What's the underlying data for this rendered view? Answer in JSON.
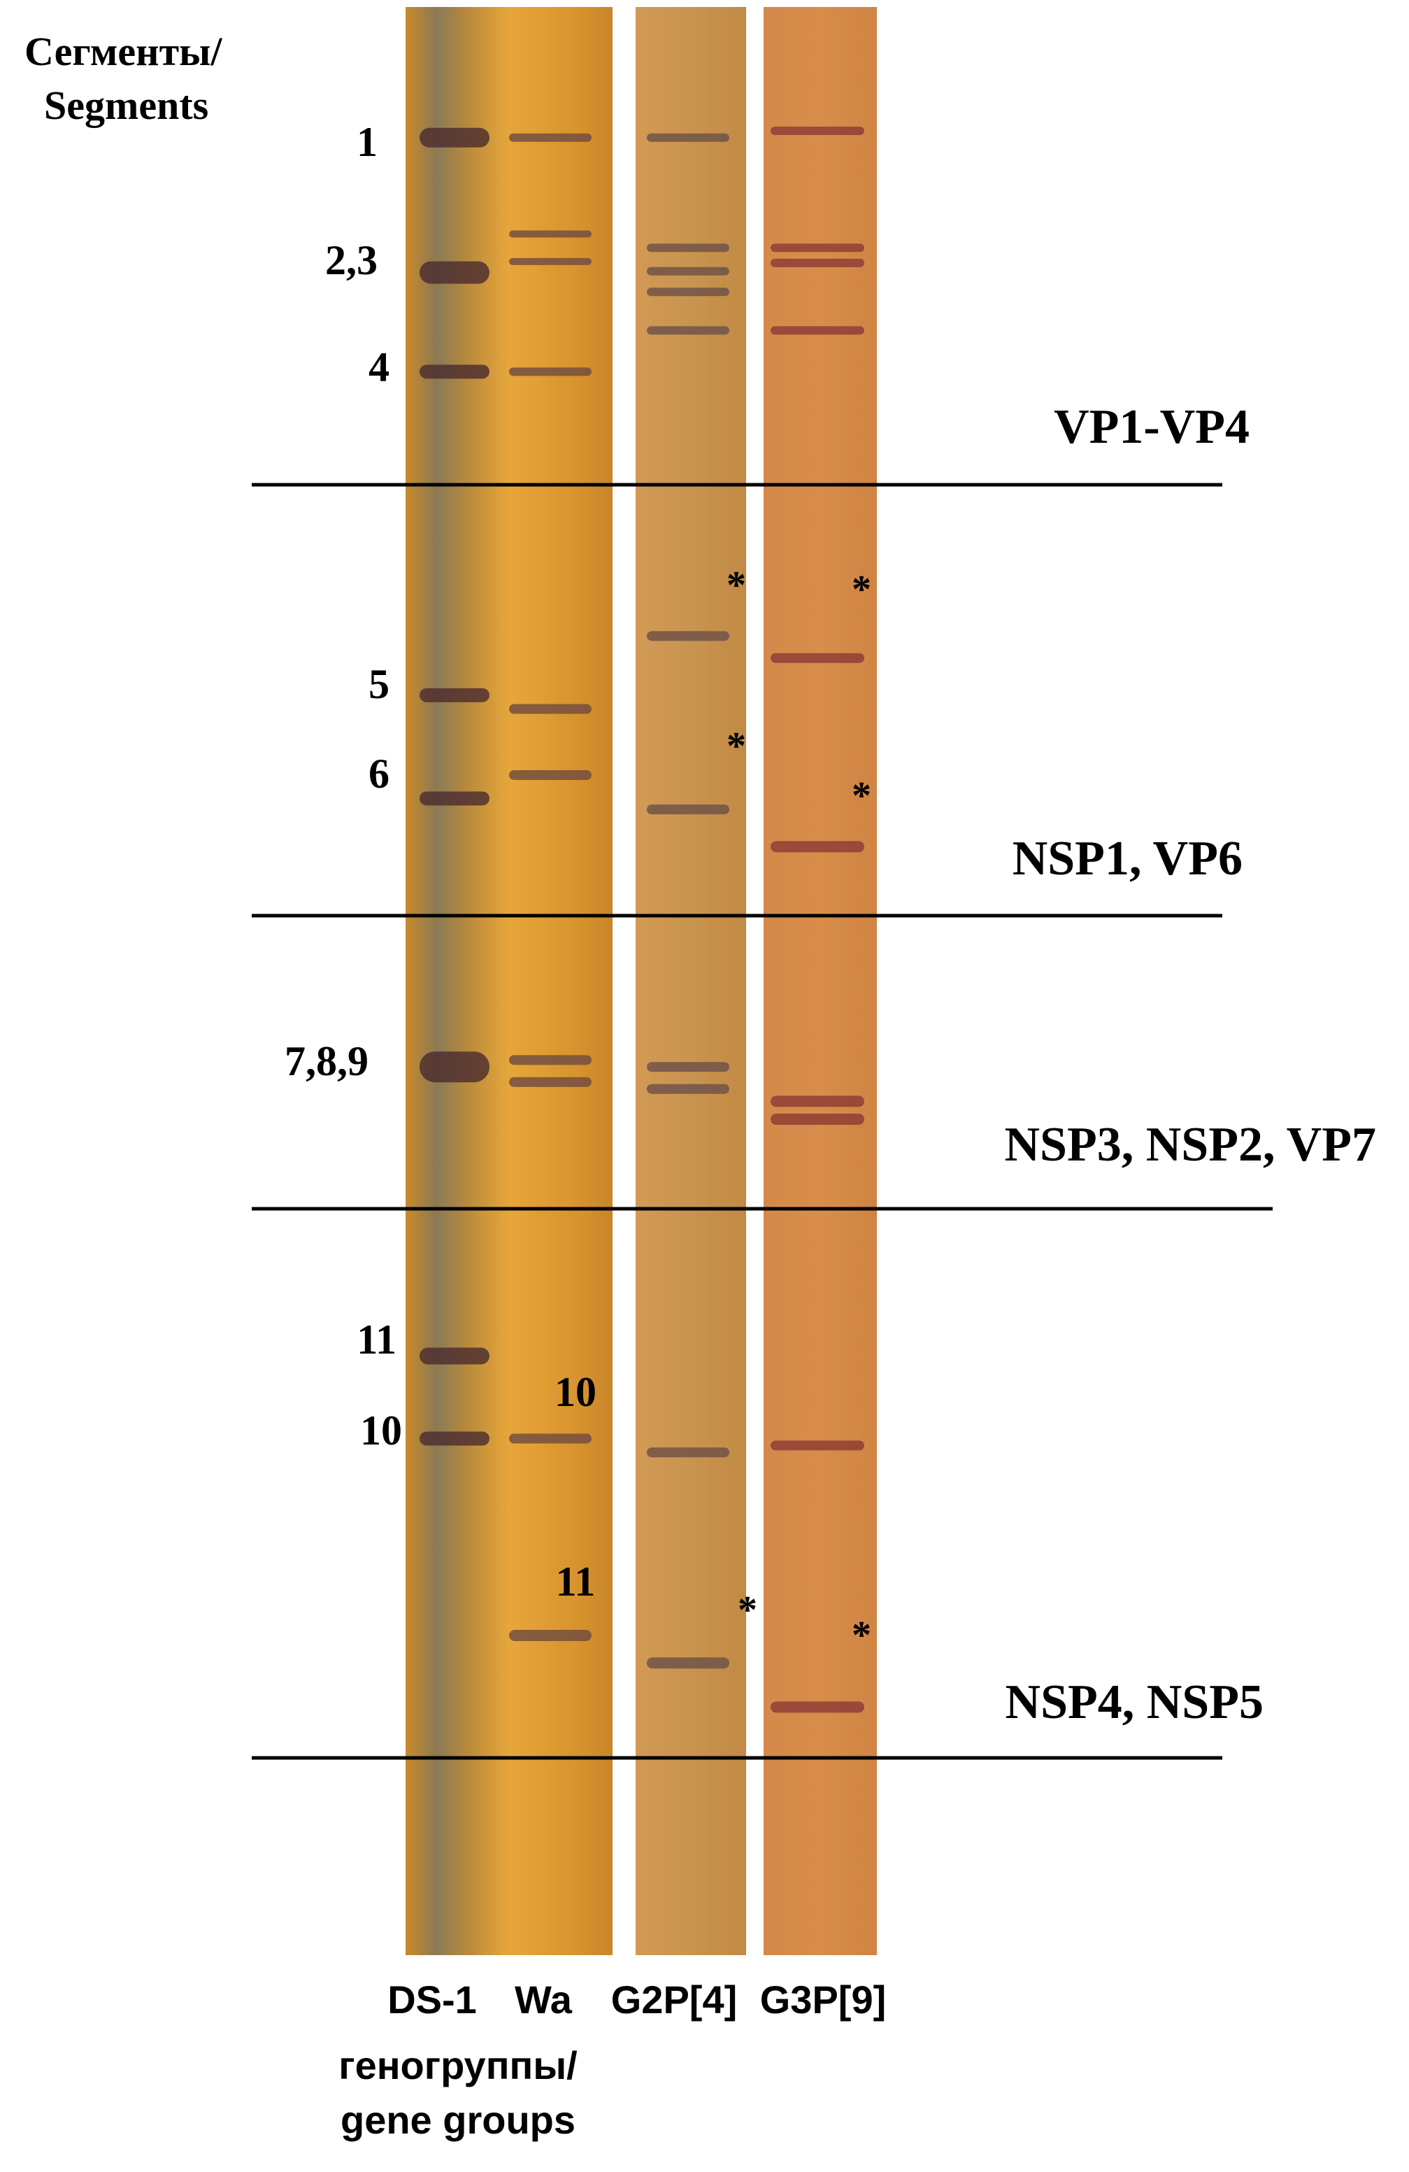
{
  "header": {
    "title_lines": [
      "Сегменты/",
      "Segments"
    ]
  },
  "segment_labels_ds1": [
    "1",
    "2,3",
    "4",
    "5",
    "6",
    "7,8,9",
    "11",
    "10"
  ],
  "segment_labels_wa": [
    "10",
    "11"
  ],
  "regions": [
    "VP1-VP4",
    "NSP1, VP6",
    "NSP3, NSP2, VP7",
    "NSP4, NSP5"
  ],
  "markers": [
    "*",
    "*",
    "*",
    "*",
    "*",
    "*"
  ],
  "lanes": [
    "DS-1",
    "Wa",
    "G2P[4]",
    "G3P[9]"
  ],
  "footer": [
    "геногруппы/",
    "gene groups"
  ]
}
